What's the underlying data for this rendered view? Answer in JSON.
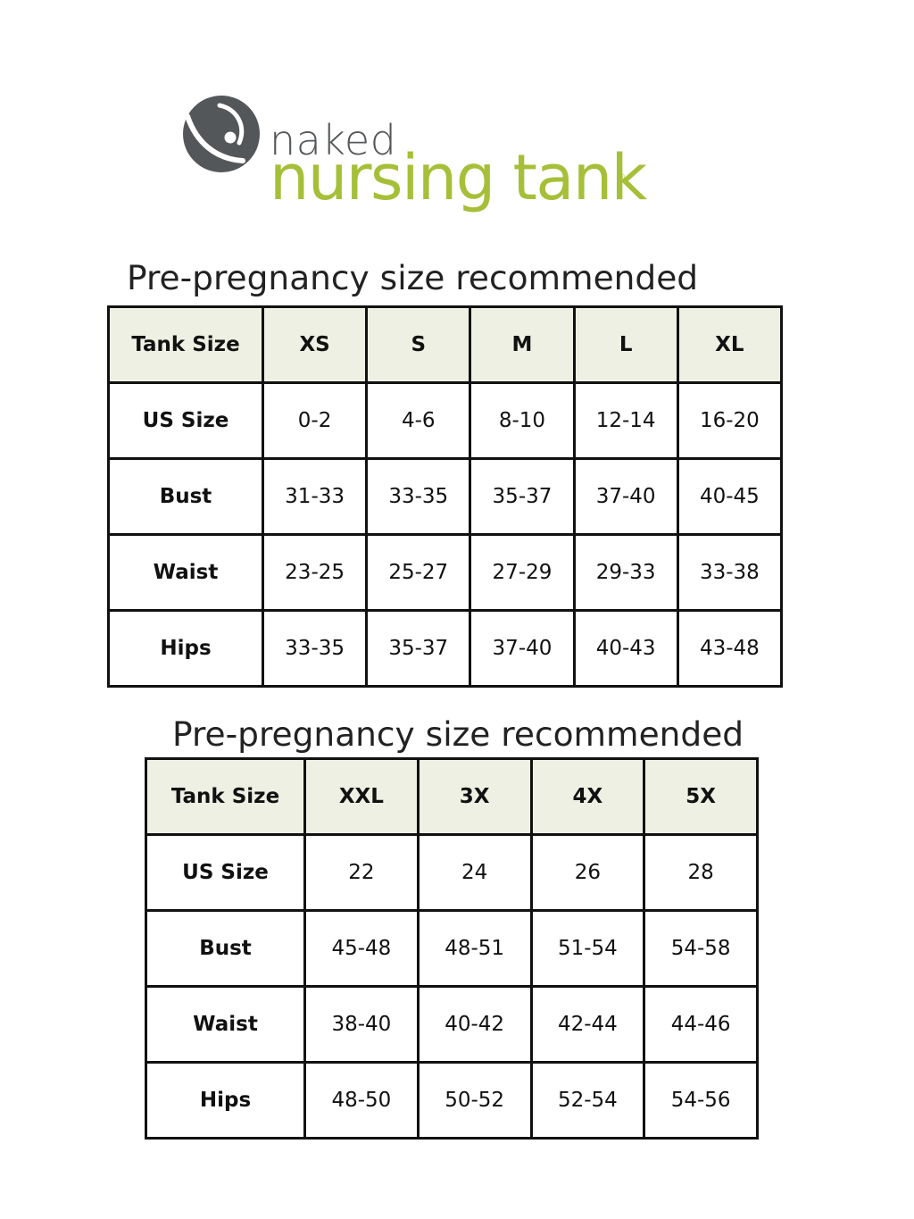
{
  "logo": {
    "line1": "naked",
    "line2": "nursing tank",
    "reg": "®"
  },
  "tables": [
    {
      "heading": "Pre-pregnancy size recommended",
      "header_label": "Tank Size",
      "sizes": [
        "XS",
        "S",
        "M",
        "L",
        "XL"
      ],
      "rows": [
        {
          "label": "US Size",
          "values": [
            "0-2",
            "4-6",
            "8-10",
            "12-14",
            "16-20"
          ]
        },
        {
          "label": "Bust",
          "values": [
            "31-33",
            "33-35",
            "35-37",
            "37-40",
            "40-45"
          ]
        },
        {
          "label": "Waist",
          "values": [
            "23-25",
            "25-27",
            "27-29",
            "29-33",
            "33-38"
          ]
        },
        {
          "label": "Hips",
          "values": [
            "33-35",
            "35-37",
            "37-40",
            "40-43",
            "43-48"
          ]
        }
      ]
    },
    {
      "heading": "Pre-pregnancy size recommended",
      "header_label": "Tank Size",
      "sizes": [
        "XXL",
        "3X",
        "4X",
        "5X"
      ],
      "rows": [
        {
          "label": "US Size",
          "values": [
            "22",
            "24",
            "26",
            "28"
          ]
        },
        {
          "label": "Bust",
          "values": [
            "45-48",
            "48-51",
            "51-54",
            "54-58"
          ]
        },
        {
          "label": "Waist",
          "values": [
            "38-40",
            "40-42",
            "42-44",
            "44-46"
          ]
        },
        {
          "label": "Hips",
          "values": [
            "48-50",
            "50-52",
            "52-54",
            "54-56"
          ]
        }
      ]
    }
  ],
  "colors": {
    "brand_green": "#a6bf38",
    "brand_gray": "#54575a",
    "header_fill": "#eef0e3",
    "border": "#111111"
  }
}
